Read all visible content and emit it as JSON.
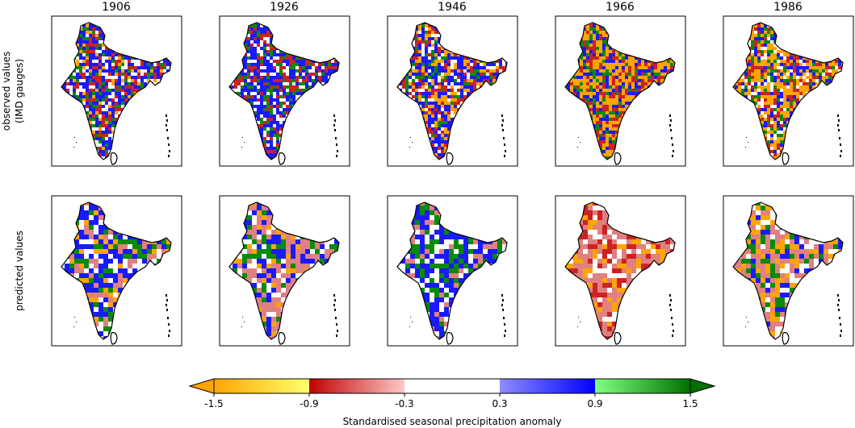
{
  "chart_data": {
    "type": "heatmap",
    "description_type": "small-multiple choropleth maps",
    "columns": [
      "1906",
      "1926",
      "1946",
      "1966",
      "1986"
    ],
    "rows": [
      {
        "label_lines": [
          "observed values",
          "(IMD gauges)"
        ],
        "key": "observed"
      },
      {
        "label_lines": [
          "predicted values"
        ],
        "key": "predicted"
      }
    ],
    "colorbar": {
      "label": "Standardised seasonal precipitation anomaly",
      "ticks": [
        "-1.5",
        "-0.9",
        "-0.3",
        "0.3",
        "0.9",
        "1.5"
      ],
      "tick_values": [
        -1.5,
        -0.9,
        -0.3,
        0.3,
        0.9,
        1.5
      ],
      "range": [
        -1.5,
        1.5
      ],
      "extend": "both",
      "segments": [
        {
          "from": -1.5,
          "to": -0.9,
          "color_start": "#ffa500",
          "color_end": "#ffff70"
        },
        {
          "from": -0.9,
          "to": -0.3,
          "color_start": "#c00000",
          "color_end": "#ffc8c8"
        },
        {
          "from": -0.3,
          "to": 0.3,
          "color_start": "#ffffff",
          "color_end": "#ffffff"
        },
        {
          "from": 0.3,
          "to": 0.9,
          "color_start": "#8c8cff",
          "color_end": "#0000ff"
        },
        {
          "from": 0.9,
          "to": 1.5,
          "color_start": "#80ff80",
          "color_end": "#007000"
        }
      ],
      "extend_low_color": "#ffa500",
      "extend_high_color": "#007000"
    },
    "panel_dominant": {
      "observed": [
        {
          "year": "1906",
          "mix": [
            "#1a1aff",
            "#cc2222",
            "#ffffff",
            "#0a8a0a",
            "#ffa500"
          ]
        },
        {
          "year": "1926",
          "mix": [
            "#1a1aff",
            "#cc2222",
            "#ffffff",
            "#0a8a0a"
          ]
        },
        {
          "year": "1946",
          "mix": [
            "#1a1aff",
            "#cc2222",
            "#ffa500",
            "#0a8a0a",
            "#ffffff"
          ]
        },
        {
          "year": "1966",
          "mix": [
            "#ffa500",
            "#cc2222",
            "#1a1aff",
            "#0a8a0a"
          ]
        },
        {
          "year": "1986",
          "mix": [
            "#ffa500",
            "#cc2222",
            "#1a1aff",
            "#0a8a0a",
            "#ffffff"
          ]
        }
      ],
      "predicted": [
        {
          "year": "1906",
          "mix": [
            "#1a1aff",
            "#e08080",
            "#ffffff",
            "#0a8a0a",
            "#ffa500"
          ]
        },
        {
          "year": "1926",
          "mix": [
            "#e08080",
            "#1a1aff",
            "#ffffff",
            "#0a8a0a",
            "#ffa500"
          ]
        },
        {
          "year": "1946",
          "mix": [
            "#1a1aff",
            "#0a8a0a",
            "#ffffff",
            "#e08080"
          ]
        },
        {
          "year": "1966",
          "mix": [
            "#e08080",
            "#cc2222",
            "#ffffff",
            "#ffa500"
          ]
        },
        {
          "year": "1986",
          "mix": [
            "#e08080",
            "#ffa500",
            "#ffffff",
            "#1a1aff",
            "#0a8a0a"
          ]
        }
      ]
    }
  }
}
